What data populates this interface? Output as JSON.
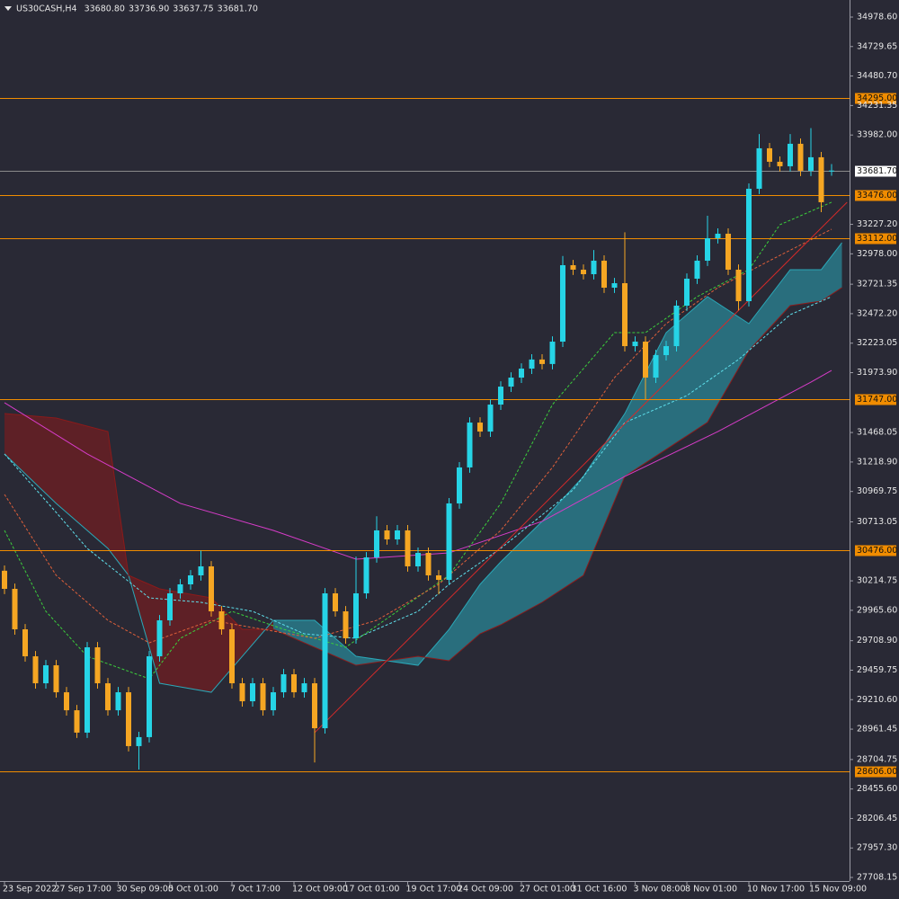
{
  "chart_data": {
    "type": "candlestick",
    "symbol": "US30CASH,H4",
    "header_values": [
      "33680.80",
      "33736.90",
      "33637.75",
      "33681.70"
    ],
    "categories": [
      "23 Sep 2022",
      null,
      null,
      null,
      null,
      "27 Sep 17:00",
      null,
      null,
      null,
      null,
      null,
      "30 Sep 09:00",
      null,
      null,
      null,
      null,
      "5 Oct 01:00",
      null,
      null,
      null,
      null,
      null,
      "7 Oct 17:00",
      null,
      null,
      null,
      null,
      null,
      "12 Oct 09:00",
      null,
      null,
      null,
      null,
      "17 Oct 01:00",
      null,
      null,
      null,
      null,
      null,
      "19 Oct 17:00",
      null,
      null,
      null,
      null,
      "24 Oct 09:00",
      null,
      null,
      null,
      null,
      null,
      "27 Oct 01:00",
      null,
      null,
      null,
      null,
      "31 Oct 16:00",
      null,
      null,
      null,
      null,
      null,
      "3 Nov 08:00",
      null,
      null,
      null,
      null,
      "8 Nov 01:00",
      null,
      null,
      null,
      null,
      null,
      "10 Nov 17:00",
      null,
      null,
      null,
      null,
      null,
      "15 Nov 09:00",
      null,
      null
    ],
    "open": [
      30300,
      30147,
      29805,
      29577,
      29349,
      29501,
      29273,
      29121,
      28932,
      29653,
      29349,
      29121,
      29273,
      28818,
      28894,
      29577,
      29881,
      30109,
      30185,
      30261,
      30337,
      29957,
      29805,
      29349,
      29197,
      29349,
      29121,
      29273,
      29425,
      29273,
      29349,
      28969,
      30109,
      29957,
      29729,
      30109,
      30413,
      30641,
      30565,
      30641,
      30337,
      30451,
      30261,
      30223,
      30869,
      31173,
      31552,
      31476,
      31704,
      31856,
      31932,
      32008,
      32085,
      32047,
      32236,
      32882,
      32844,
      32806,
      32920,
      32692,
      32730,
      32198,
      32236,
      31932,
      32122,
      32198,
      32540,
      32768,
      32920,
      33110,
      33148,
      32844,
      32578,
      33528,
      33870,
      33756,
      33718,
      33908,
      33680,
      33794,
      33680.8
    ],
    "high": [
      30345,
      30192,
      29850,
      29622,
      29546,
      29546,
      29318,
      29166,
      29698,
      29698,
      29394,
      29318,
      29318,
      28939,
      29622,
      29926,
      30154,
      30230,
      30306,
      30470,
      30382,
      30002,
      29850,
      29394,
      29394,
      29394,
      29318,
      29470,
      29470,
      29394,
      29394,
      30154,
      30154,
      30002,
      30420,
      30458,
      30760,
      30686,
      30686,
      30686,
      30496,
      30496,
      30306,
      30914,
      31218,
      31597,
      31597,
      31749,
      31901,
      31977,
      32053,
      32130,
      32130,
      32281,
      32960,
      32927,
      32889,
      33010,
      32965,
      32775,
      33160,
      32281,
      32281,
      32167,
      32243,
      32585,
      32813,
      32965,
      33300,
      33193,
      33193,
      32889,
      33573,
      33990,
      33915,
      33801,
      33990,
      33953,
      34040,
      33839,
      33736.9
    ],
    "low": [
      30102,
      29760,
      29532,
      29304,
      29304,
      29228,
      29076,
      28887,
      28887,
      29304,
      29076,
      29076,
      28773,
      28620,
      28849,
      29532,
      29836,
      30064,
      30140,
      30216,
      29912,
      29760,
      29304,
      29152,
      29152,
      29076,
      29076,
      29228,
      29228,
      29228,
      28680,
      28924,
      29912,
      29684,
      29684,
      30064,
      30368,
      30520,
      30520,
      30292,
      30292,
      30216,
      30100,
      30178,
      30824,
      31128,
      31431,
      31431,
      31659,
      31811,
      31887,
      31963,
      32002,
      32002,
      32191,
      32799,
      32761,
      32761,
      32647,
      32647,
      32153,
      32153,
      31750,
      31887,
      32077,
      32153,
      32495,
      32723,
      32875,
      33065,
      32799,
      32500,
      32533,
      33483,
      33711,
      33673,
      33673,
      33635,
      33635,
      33330,
      33637.75
    ],
    "close": [
      30147,
      29805,
      29577,
      29349,
      29501,
      29273,
      29121,
      28932,
      29653,
      29349,
      29121,
      29273,
      28818,
      28894,
      29577,
      29881,
      30109,
      30185,
      30261,
      30337,
      29957,
      29805,
      29349,
      29197,
      29349,
      29121,
      29273,
      29425,
      29273,
      29349,
      28969,
      30109,
      29957,
      29729,
      30109,
      30413,
      30641,
      30565,
      30641,
      30337,
      30451,
      30261,
      30223,
      30869,
      31173,
      31552,
      31476,
      31704,
      31856,
      31932,
      32008,
      32085,
      32047,
      32236,
      32882,
      32844,
      32806,
      32920,
      32692,
      32730,
      32198,
      32236,
      31932,
      32122,
      32198,
      32540,
      32768,
      32920,
      33110,
      33148,
      32844,
      32578,
      33528,
      33870,
      33756,
      33718,
      33908,
      33680,
      33794,
      33414,
      33681.7
    ],
    "up_color": "#26d4e6",
    "down_color": "#f5a623",
    "ylim": [
      27678,
      35123
    ],
    "yticks": [
      {
        "value": 34978.6,
        "label": "34978.60"
      },
      {
        "value": 34729.65,
        "label": "34729.65"
      },
      {
        "value": 34480.7,
        "label": "34480.70"
      },
      {
        "value": 34231.35,
        "label": "34231.35"
      },
      {
        "value": 33982,
        "label": "33982.00"
      },
      {
        "value": 33227.2,
        "label": "33227.20"
      },
      {
        "value": 32978,
        "label": "32978.00"
      },
      {
        "value": 32721.35,
        "label": "32721.35"
      },
      {
        "value": 32472.2,
        "label": "32472.20"
      },
      {
        "value": 32223.05,
        "label": "32223.05"
      },
      {
        "value": 31973.9,
        "label": "31973.90"
      },
      {
        "value": 31468.05,
        "label": "31468.05"
      },
      {
        "value": 31218.9,
        "label": "31218.90"
      },
      {
        "value": 30969.75,
        "label": "30969.75"
      },
      {
        "value": 30713.05,
        "label": "30713.05"
      },
      {
        "value": 30214.75,
        "label": "30214.75"
      },
      {
        "value": 29965.6,
        "label": "29965.60"
      },
      {
        "value": 29708.9,
        "label": "29708.90"
      },
      {
        "value": 29459.75,
        "label": "29459.75"
      },
      {
        "value": 29210.6,
        "label": "29210.60"
      },
      {
        "value": 28961.45,
        "label": "28961.45"
      },
      {
        "value": 28704.75,
        "label": "28704.75"
      },
      {
        "value": 28455.6,
        "label": "28455.60"
      },
      {
        "value": 28206.45,
        "label": "28206.45"
      },
      {
        "value": 27957.3,
        "label": "27957.30"
      },
      {
        "value": 27708.15,
        "label": "27708.15"
      }
    ],
    "levels": {
      "color": "#f08c00",
      "values": [
        {
          "value": 34295,
          "label": "34295.00"
        },
        {
          "value": 33476,
          "label": "33476.00"
        },
        {
          "value": 33112,
          "label": "33112.00"
        },
        {
          "value": 31747,
          "label": "31747.00"
        },
        {
          "value": 30476,
          "label": "30476.00"
        },
        {
          "value": 28606,
          "label": "28606.00"
        }
      ]
    },
    "current_price": {
      "value": 33681.7,
      "label": "33681.70",
      "color": "#8a8a8a"
    },
    "overlays": [
      {
        "color": "#d63cc8",
        "dash": false,
        "x": [
          0,
          8,
          17,
          26,
          34,
          43,
          52,
          60,
          69,
          78,
          80
        ],
        "values": [
          31720,
          31287,
          30869,
          30641,
          30398,
          30451,
          30717,
          31097,
          31476,
          31894,
          31993
        ]
      },
      {
        "color": "#5fe0ec",
        "dash": true,
        "x": [
          0,
          5,
          8,
          14,
          19,
          24,
          29,
          34,
          40,
          43,
          48,
          55,
          60,
          66,
          71,
          76,
          80
        ],
        "values": [
          31287,
          30793,
          30489,
          30071,
          30033,
          29957,
          29767,
          29729,
          29957,
          30185,
          30489,
          30983,
          31552,
          31780,
          32085,
          32464,
          32616
        ]
      },
      {
        "color": "#3ccf3c",
        "dash": true,
        "x": [
          0,
          4,
          8,
          14,
          17,
          22,
          27,
          33,
          38,
          43,
          48,
          53,
          59,
          62,
          67,
          72,
          75,
          80
        ],
        "values": [
          30641,
          29957,
          29577,
          29387,
          29729,
          29957,
          29805,
          29653,
          29957,
          30261,
          30869,
          31704,
          32312,
          32312,
          32616,
          32844,
          33224,
          33414
        ]
      },
      {
        "color": "#e0603a",
        "dash": true,
        "x": [
          0,
          5,
          10,
          14,
          20,
          25,
          30,
          36,
          42,
          48,
          53,
          59,
          64,
          69,
          74,
          80
        ],
        "values": [
          30945,
          30261,
          29881,
          29691,
          29881,
          29805,
          29729,
          29881,
          30185,
          30641,
          31173,
          31932,
          32388,
          32692,
          32920,
          33186
        ]
      }
    ],
    "cloud": {
      "up_color": "#2aa8b8",
      "down_color": "#8b1a1a",
      "x": [
        0,
        5,
        10,
        12,
        15,
        20,
        23,
        26,
        30,
        34,
        40,
        43,
        46,
        48,
        52,
        56,
        60,
        64,
        68,
        72,
        76,
        79,
        81
      ],
      "span_a": [
        31287,
        30869,
        30489,
        30261,
        29349,
        29273,
        29577,
        29881,
        29881,
        29577,
        29501,
        29805,
        30185,
        30375,
        30717,
        31097,
        31628,
        32312,
        32616,
        32388,
        32844,
        32844,
        33072
      ],
      "span_b": [
        31628,
        31590,
        31476,
        30261,
        30147,
        30071,
        29805,
        29805,
        29653,
        29501,
        29577,
        29539,
        29767,
        29843,
        30033,
        30261,
        31097,
        31325,
        31554,
        32160,
        32540,
        32578,
        32692
      ]
    },
    "trend_line": {
      "color": "#d42a2a",
      "x": [
        30,
        81.5
      ],
      "values": [
        28932,
        33414
      ]
    }
  }
}
